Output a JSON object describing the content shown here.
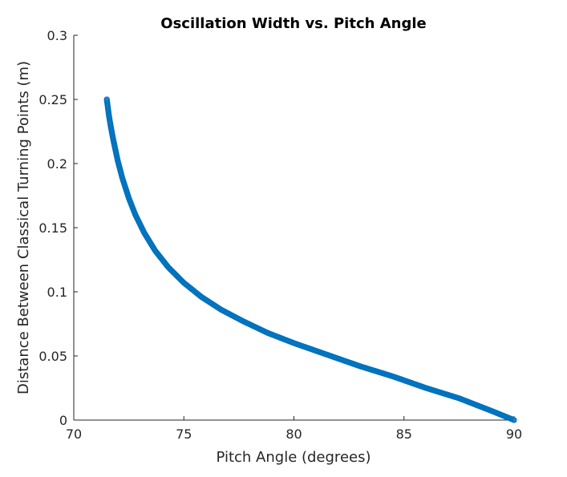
{
  "chart_data": {
    "type": "scatter",
    "title": "Oscillation Width vs. Pitch Angle",
    "xlabel": "Pitch Angle (degrees)",
    "ylabel": "Distance Between Classical Turning Points (m)",
    "xlim": [
      70,
      90
    ],
    "ylim": [
      0,
      0.3
    ],
    "xticks": [
      "70",
      "75",
      "80",
      "85",
      "90"
    ],
    "yticks": [
      "0",
      "0.05",
      "0.1",
      "0.15",
      "0.2",
      "0.25",
      "0.3"
    ],
    "grid": false,
    "marker": "circle",
    "color": "#0072BD",
    "series": [
      {
        "x": [
          71.5,
          71.6,
          71.7,
          71.8,
          72.0,
          72.2,
          72.5,
          72.8,
          73.2,
          73.7,
          74.3,
          75.0,
          75.8,
          76.7,
          77.7,
          78.8,
          80.0,
          81.5,
          83.0,
          84.5,
          86.0,
          87.5,
          89.0,
          90.0
        ],
        "y": [
          0.25,
          0.237,
          0.227,
          0.218,
          0.202,
          0.189,
          0.173,
          0.16,
          0.146,
          0.132,
          0.119,
          0.107,
          0.096,
          0.086,
          0.077,
          0.068,
          0.06,
          0.051,
          0.042,
          0.034,
          0.025,
          0.017,
          0.007,
          0.0
        ]
      }
    ]
  }
}
